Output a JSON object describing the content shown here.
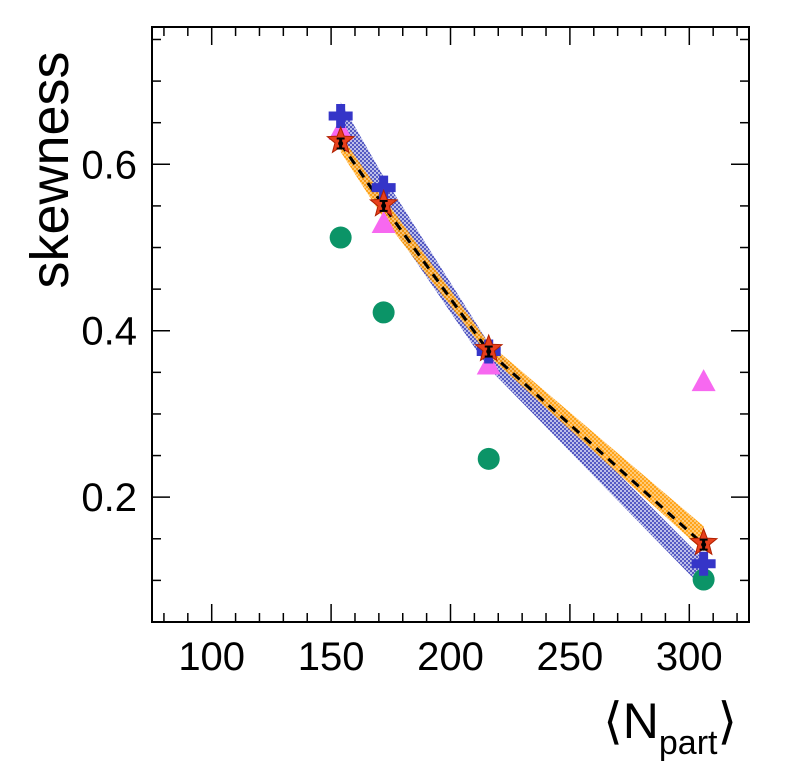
{
  "chart_data": {
    "type": "scatter",
    "title": "",
    "xlabel": {
      "prefix": "⟨N",
      "sub": "part",
      "suffix": "⟩"
    },
    "ylabel": "skewness",
    "xlim": [
      75,
      325
    ],
    "ylim": [
      0.05,
      0.765
    ],
    "x_ticks": [
      100,
      150,
      200,
      250,
      300
    ],
    "x_tick_labels": [
      "100",
      "150",
      "200",
      "250",
      "300"
    ],
    "y_ticks": [
      0.2,
      0.4,
      0.6
    ],
    "y_tick_labels": [
      "0.2",
      "0.4",
      "0.6"
    ],
    "grid": false,
    "legend": "none",
    "series": [
      {
        "name": "band-blue",
        "kind": "band",
        "color": "#5a5fc8",
        "x": [
          154,
          172,
          216,
          306
        ],
        "upper": [
          0.675,
          0.585,
          0.385,
          0.125
        ],
        "lower": [
          0.625,
          0.54,
          0.355,
          0.09
        ]
      },
      {
        "name": "band-orange",
        "kind": "band",
        "color": "#ffa31a",
        "x": [
          154,
          172,
          216,
          306
        ],
        "upper": [
          0.635,
          0.56,
          0.385,
          0.165
        ],
        "lower": [
          0.615,
          0.535,
          0.37,
          0.135
        ]
      },
      {
        "name": "dashed-line",
        "kind": "line",
        "color": "#000000",
        "x": [
          154,
          172,
          216,
          306
        ],
        "y": [
          0.625,
          0.55,
          0.375,
          0.143
        ]
      },
      {
        "name": "green-circles",
        "kind": "marker",
        "marker": "circle",
        "color": "#0b9467",
        "x": [
          154,
          172,
          216,
          306
        ],
        "y": [
          0.512,
          0.422,
          0.246,
          0.101
        ]
      },
      {
        "name": "magenta-triangles",
        "kind": "marker",
        "marker": "triangle",
        "color": "#f768f0",
        "x": [
          154,
          172,
          216,
          306
        ],
        "y": [
          0.64,
          0.528,
          0.358,
          0.338
        ]
      },
      {
        "name": "blue-crosses",
        "kind": "marker",
        "marker": "cross",
        "color": "#3535c8",
        "x": [
          154,
          172,
          216,
          306
        ],
        "y": [
          0.658,
          0.572,
          0.375,
          0.12
        ]
      },
      {
        "name": "red-stars",
        "kind": "marker",
        "marker": "star",
        "color": "#e8401c",
        "x": [
          154,
          172,
          216,
          306
        ],
        "y": [
          0.628,
          0.552,
          0.378,
          0.145
        ]
      },
      {
        "name": "black-points",
        "kind": "errorpoint",
        "color": "#000000",
        "x": [
          154,
          172,
          216,
          306
        ],
        "y": [
          0.625,
          0.55,
          0.375,
          0.143
        ],
        "err": [
          0.006,
          0.006,
          0.006,
          0.006
        ]
      }
    ]
  }
}
